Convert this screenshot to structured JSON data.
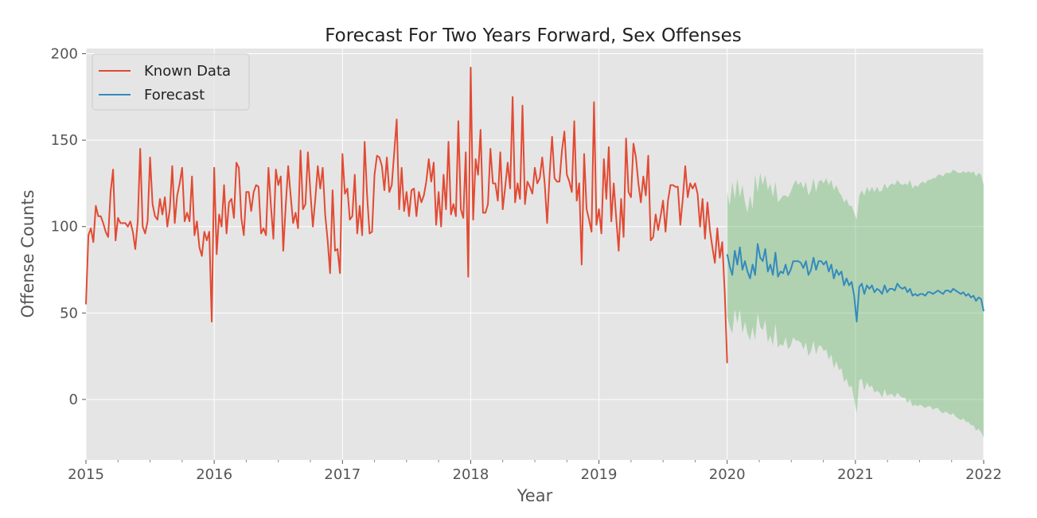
{
  "chart_data": {
    "type": "line",
    "title": "Forecast For Two Years Forward, Sex Offenses",
    "xlabel": "Year",
    "ylabel": "Offense Counts",
    "xlim": [
      2015,
      2022
    ],
    "ylim": [
      -35,
      203
    ],
    "x_ticks": [
      "2015",
      "2016",
      "2017",
      "2018",
      "2019",
      "2020",
      "2021",
      "2022"
    ],
    "y_ticks": [
      0,
      50,
      100,
      150,
      200
    ],
    "grid": true,
    "legend_position": "top-left",
    "series": [
      {
        "name": "Known Data",
        "color": "#E24A33",
        "values": [
          55,
          95,
          99,
          91,
          112,
          106,
          106,
          102,
          97,
          94,
          120,
          133,
          92,
          105,
          102,
          102,
          102,
          100,
          103,
          97,
          87,
          103,
          145,
          100,
          96,
          103,
          140,
          113,
          106,
          104,
          116,
          107,
          117,
          100,
          110,
          135,
          102,
          118,
          125,
          134,
          103,
          108,
          103,
          129,
          95,
          103,
          88,
          83,
          97,
          92,
          97,
          45,
          134,
          84,
          107,
          100,
          124,
          96,
          114,
          116,
          105,
          137,
          134,
          105,
          95,
          120,
          120,
          109,
          120,
          124,
          123,
          96,
          99,
          95,
          134,
          112,
          93,
          133,
          124,
          129,
          86,
          112,
          135,
          118,
          102,
          108,
          99,
          144,
          110,
          113,
          143,
          120,
          100,
          116,
          135,
          122,
          134,
          107,
          92,
          73,
          121,
          86,
          87,
          73,
          142,
          119,
          122,
          104,
          106,
          130,
          96,
          112,
          95,
          149,
          118,
          96,
          97,
          130,
          141,
          140,
          135,
          121,
          140,
          120,
          124,
          143,
          162,
          110,
          134,
          109,
          120,
          106,
          121,
          122,
          106,
          120,
          114,
          118,
          126,
          139,
          126,
          137,
          101,
          120,
          100,
          130,
          110,
          149,
          107,
          113,
          106,
          161,
          110,
          105,
          143,
          71,
          192,
          104,
          139,
          130,
          156,
          108,
          108,
          113,
          145,
          125,
          125,
          115,
          143,
          110,
          123,
          137,
          122,
          175,
          114,
          125,
          116,
          170,
          113,
          126,
          123,
          119,
          134,
          125,
          128,
          140,
          125,
          102,
          130,
          152,
          128,
          126,
          126,
          144,
          155,
          130,
          126,
          120,
          161,
          115,
          125,
          78,
          142,
          110,
          104,
          97,
          172,
          101,
          110,
          96,
          139,
          116,
          146,
          103,
          125,
          105,
          86,
          116,
          94,
          151,
          120,
          117,
          148,
          140,
          125,
          114,
          129,
          118,
          141,
          92,
          94,
          107,
          98,
          106,
          115,
          97,
          115,
          124,
          124,
          123,
          123,
          101,
          116,
          135,
          117,
          125,
          122,
          125,
          119,
          100,
          116,
          93,
          114,
          98,
          88,
          79,
          99,
          82,
          91,
          62,
          21
        ]
      },
      {
        "name": "Forecast",
        "color": "#348ABD",
        "values": [
          84,
          77,
          72,
          86,
          78,
          88,
          75,
          80,
          74,
          70,
          78,
          72,
          90,
          82,
          80,
          87,
          74,
          78,
          72,
          85,
          71,
          74,
          73,
          78,
          72,
          75,
          80,
          80,
          80,
          79,
          76,
          80,
          72,
          75,
          82,
          75,
          80,
          80,
          78,
          80,
          74,
          78,
          70,
          75,
          72,
          74,
          66,
          70,
          66,
          68,
          60,
          45,
          65,
          67,
          61,
          66,
          64,
          66,
          62,
          64,
          63,
          61,
          66,
          62,
          64,
          64,
          63,
          67,
          65,
          64,
          65,
          62,
          64,
          60,
          61,
          60,
          61,
          61,
          60,
          62,
          62,
          61,
          62,
          63,
          62,
          61,
          63,
          63,
          62,
          64,
          63,
          62,
          61,
          62,
          60,
          61,
          59,
          60,
          57,
          59,
          58,
          51
        ]
      }
    ],
    "confidence_band": {
      "color": "#4CAF50",
      "upper": [
        120,
        112,
        126,
        116,
        128,
        117,
        124,
        114,
        108,
        118,
        110,
        130,
        120,
        131,
        124,
        130,
        121,
        125,
        117,
        126,
        114,
        116,
        118,
        118,
        117,
        120,
        124,
        127,
        124,
        126,
        122,
        126,
        118,
        121,
        128,
        120,
        126,
        127,
        125,
        128,
        124,
        127,
        121,
        124,
        120,
        118,
        114,
        116,
        112,
        112,
        108,
        104,
        118,
        121,
        118,
        123,
        120,
        123,
        120,
        123,
        120,
        121,
        125,
        122,
        124,
        125,
        124,
        127,
        125,
        124,
        125,
        124,
        127,
        122,
        124,
        123,
        125,
        126,
        125,
        127,
        127,
        128,
        128,
        130,
        130,
        129,
        131,
        131,
        131,
        133,
        132,
        131,
        131,
        132,
        131,
        132,
        131,
        132,
        129,
        131,
        130,
        124
      ],
      "lower": [
        48,
        42,
        38,
        52,
        44,
        52,
        38,
        45,
        38,
        34,
        42,
        34,
        50,
        42,
        40,
        46,
        33,
        37,
        31,
        44,
        30,
        32,
        31,
        36,
        29,
        31,
        36,
        34,
        34,
        33,
        29,
        33,
        25,
        28,
        34,
        26,
        31,
        31,
        28,
        29,
        23,
        26,
        18,
        22,
        17,
        18,
        10,
        12,
        7,
        8,
        0,
        -8,
        11,
        12,
        5,
        10,
        7,
        8,
        4,
        5,
        4,
        1,
        6,
        2,
        3,
        3,
        1,
        4,
        2,
        1,
        1,
        -2,
        0,
        -4,
        -3,
        -4,
        -3,
        -4,
        -5,
        -4,
        -4,
        -6,
        -5,
        -5,
        -7,
        -8,
        -7,
        -8,
        -9,
        -8,
        -10,
        -11,
        -12,
        -11,
        -13,
        -13,
        -15,
        -15,
        -18,
        -17,
        -19,
        -22
      ]
    }
  }
}
